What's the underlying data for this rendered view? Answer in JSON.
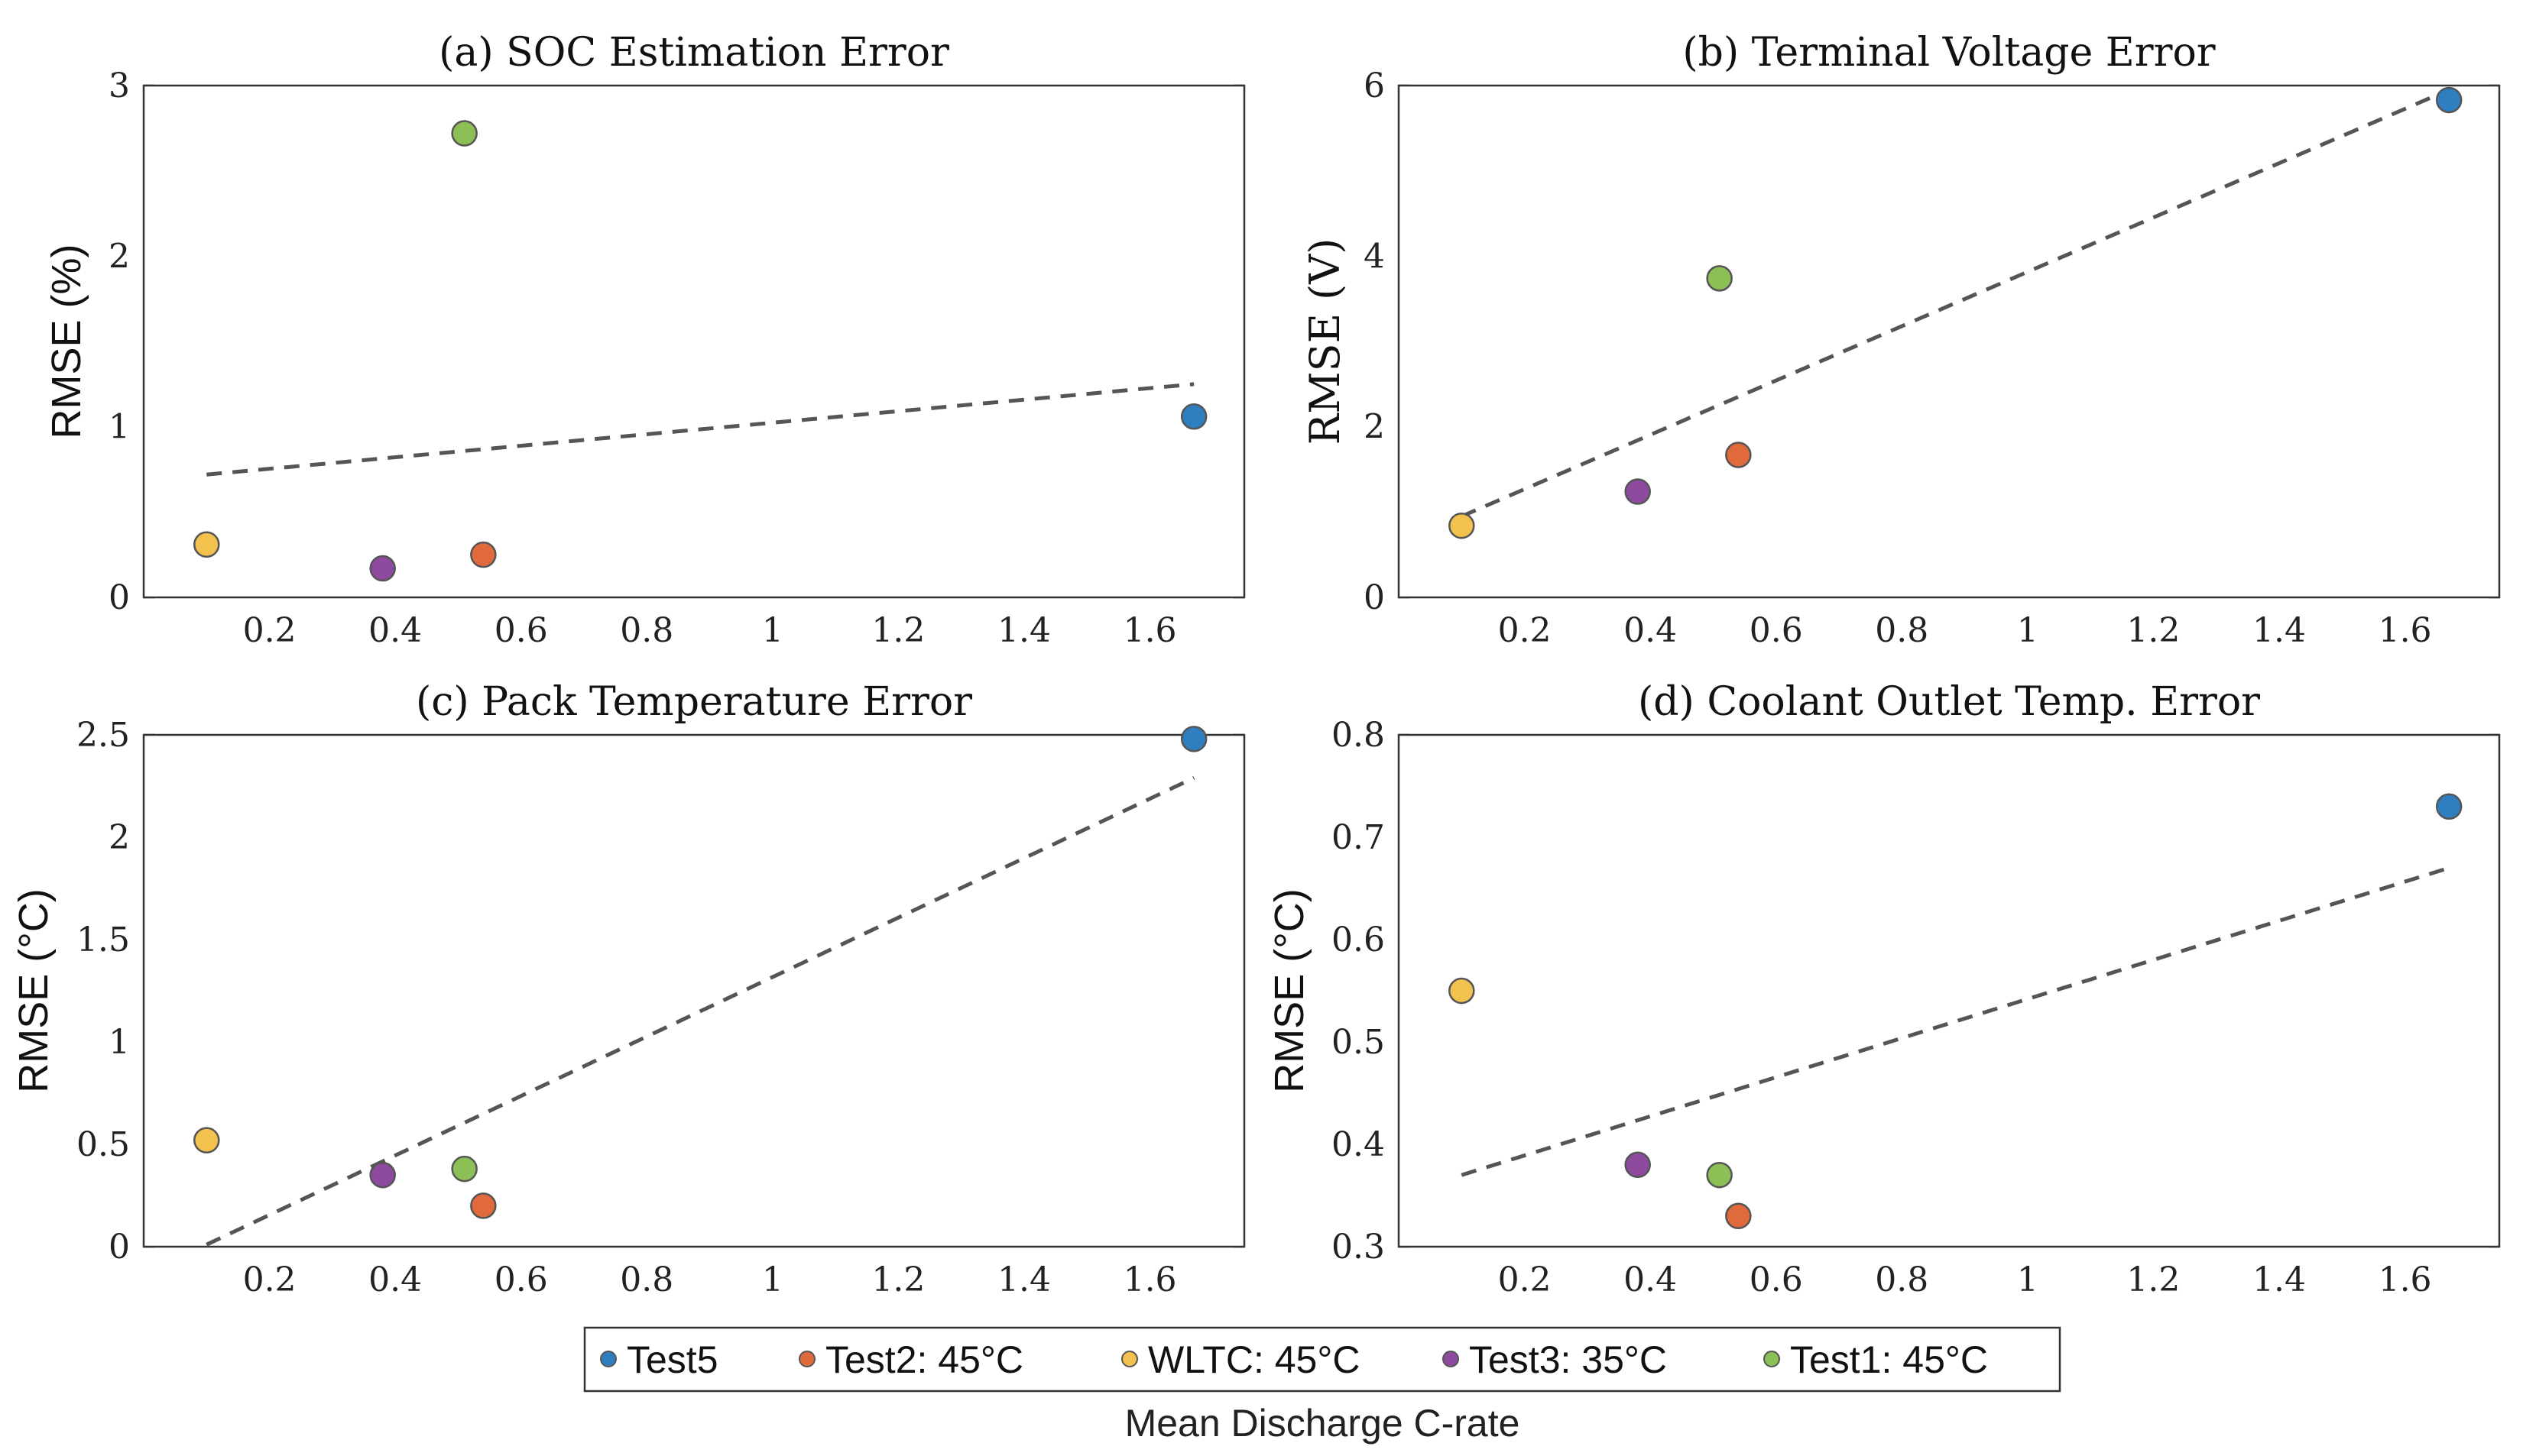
{
  "chart_data": [
    {
      "type": "scatter",
      "id": "a",
      "title": "(a) SOC Estimation Error",
      "xlabel": "",
      "ylabel": "RMSE (%)",
      "xlim": [
        0,
        1.75
      ],
      "ylim": [
        0,
        3
      ],
      "xticks": [
        0.2,
        0.4,
        0.6,
        0.8,
        1,
        1.2,
        1.4,
        1.6
      ],
      "yticks": [
        0,
        1,
        2,
        3
      ],
      "grid": true,
      "series": [
        {
          "name": "Test5",
          "x": [
            1.67
          ],
          "y": [
            1.06
          ]
        },
        {
          "name": "Test2: 45°C",
          "x": [
            0.54
          ],
          "y": [
            0.25
          ]
        },
        {
          "name": "WLTC: 45°C",
          "x": [
            0.1
          ],
          "y": [
            0.31
          ]
        },
        {
          "name": "Test3: 35°C",
          "x": [
            0.38
          ],
          "y": [
            0.17
          ]
        },
        {
          "name": "Test1: 45°C",
          "x": [
            0.51
          ],
          "y": [
            2.72
          ]
        }
      ],
      "trendline": {
        "x": [
          0.1,
          1.67
        ],
        "y": [
          0.72,
          1.25
        ]
      }
    },
    {
      "type": "scatter",
      "id": "b",
      "title": "(b) Terminal Voltage Error",
      "xlabel": "",
      "ylabel": "RMSE (V)",
      "xlim": [
        0,
        1.75
      ],
      "ylim": [
        0,
        6
      ],
      "xticks": [
        0.2,
        0.4,
        0.6,
        0.8,
        1,
        1.2,
        1.4,
        1.6
      ],
      "yticks": [
        0,
        2,
        4,
        6
      ],
      "grid": true,
      "series": [
        {
          "name": "Test5",
          "x": [
            1.67
          ],
          "y": [
            5.83
          ]
        },
        {
          "name": "Test2: 45°C",
          "x": [
            0.54
          ],
          "y": [
            1.67
          ]
        },
        {
          "name": "WLTC: 45°C",
          "x": [
            0.1
          ],
          "y": [
            0.84
          ]
        },
        {
          "name": "Test3: 35°C",
          "x": [
            0.38
          ],
          "y": [
            1.24
          ]
        },
        {
          "name": "Test1: 45°C",
          "x": [
            0.51
          ],
          "y": [
            3.74
          ]
        }
      ],
      "trendline": {
        "x": [
          0.1,
          1.67
        ],
        "y": [
          0.95,
          5.95
        ]
      }
    },
    {
      "type": "scatter",
      "id": "c",
      "title": "(c) Pack Temperature Error",
      "xlabel": "",
      "ylabel": "RMSE (°C)",
      "xlim": [
        0,
        1.75
      ],
      "ylim": [
        0,
        2.5
      ],
      "xticks": [
        0.2,
        0.4,
        0.6,
        0.8,
        1,
        1.2,
        1.4,
        1.6
      ],
      "yticks": [
        0,
        0.5,
        1,
        1.5,
        2,
        2.5
      ],
      "grid": true,
      "series": [
        {
          "name": "Test5",
          "x": [
            1.67
          ],
          "y": [
            2.48
          ]
        },
        {
          "name": "Test2: 45°C",
          "x": [
            0.54
          ],
          "y": [
            0.2
          ]
        },
        {
          "name": "WLTC: 45°C",
          "x": [
            0.1
          ],
          "y": [
            0.52
          ]
        },
        {
          "name": "Test3: 35°C",
          "x": [
            0.38
          ],
          "y": [
            0.35
          ]
        },
        {
          "name": "Test1: 45°C",
          "x": [
            0.51
          ],
          "y": [
            0.38
          ]
        }
      ],
      "trendline": {
        "x": [
          0.1,
          1.67
        ],
        "y": [
          0.01,
          2.29
        ]
      }
    },
    {
      "type": "scatter",
      "id": "d",
      "title": "(d) Coolant Outlet Temp. Error",
      "xlabel": "",
      "ylabel": "RMSE (°C)",
      "xlim": [
        0,
        1.75
      ],
      "ylim": [
        0.3,
        0.8
      ],
      "xticks": [
        0.2,
        0.4,
        0.6,
        0.8,
        1,
        1.2,
        1.4,
        1.6
      ],
      "yticks": [
        0.3,
        0.4,
        0.5,
        0.6,
        0.7,
        0.8
      ],
      "grid": true,
      "series": [
        {
          "name": "Test5",
          "x": [
            1.67
          ],
          "y": [
            0.73
          ]
        },
        {
          "name": "Test2: 45°C",
          "x": [
            0.54
          ],
          "y": [
            0.33
          ]
        },
        {
          "name": "WLTC: 45°C",
          "x": [
            0.1
          ],
          "y": [
            0.55
          ]
        },
        {
          "name": "Test3: 35°C",
          "x": [
            0.38
          ],
          "y": [
            0.38
          ]
        },
        {
          "name": "Test1: 45°C",
          "x": [
            0.51
          ],
          "y": [
            0.37
          ]
        }
      ],
      "trendline": {
        "x": [
          0.1,
          1.67
        ],
        "y": [
          0.37,
          0.67
        ]
      }
    }
  ],
  "legend": {
    "placement": "bottom-center",
    "entries": [
      {
        "label": "Test5",
        "color": "#0072BD"
      },
      {
        "label": "Test2: 45°C",
        "color": "#D95319"
      },
      {
        "label": "WLTC: 45°C",
        "color": "#EDB120"
      },
      {
        "label": "Test3: 35°C",
        "color": "#7E2F8E"
      },
      {
        "label": "Test1: 45°C",
        "color": "#77AC30"
      }
    ]
  },
  "shared_xlabel": "Mean Discharge C-rate",
  "colors": {
    "Test5": "#2E7EC0",
    "Test2: 45°C": "#E06A3C",
    "WLTC: 45°C": "#F2C14E",
    "Test3: 35°C": "#8E4A9E",
    "Test1: 45°C": "#8CBF56"
  }
}
